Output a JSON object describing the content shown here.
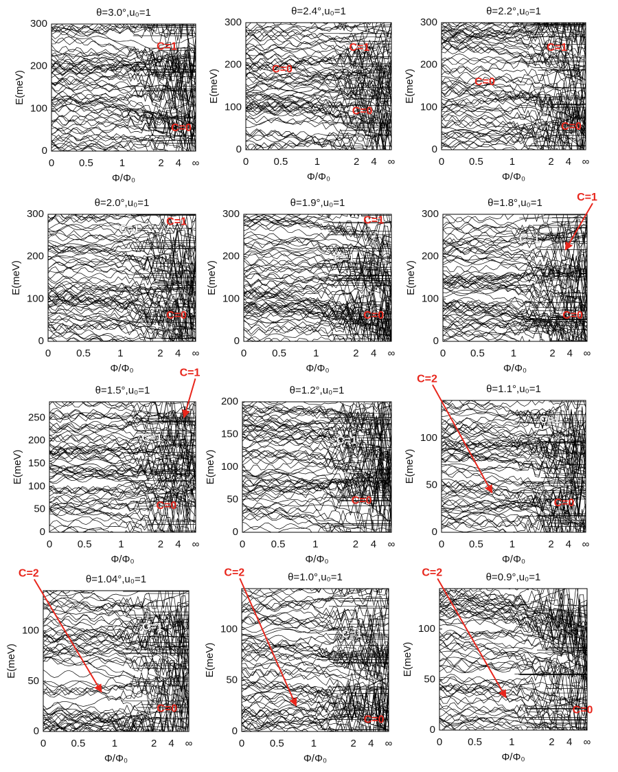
{
  "chart_data": [
    {
      "type": "spectrum",
      "title": "θ=3.0°,u₀=1",
      "ylabel": "E(meV)",
      "xlabel": "Φ/Φ₀",
      "xtick_labels": [
        "0",
        "0.5",
        "1",
        "2",
        "4",
        "∞"
      ],
      "ylim": [
        0,
        300
      ],
      "yticks": [
        0,
        100,
        200,
        300
      ],
      "annotations": [
        "C=1",
        "C=0"
      ]
    },
    {
      "type": "spectrum",
      "title": "θ=2.4°,u₀=1",
      "ylabel": "E(meV)",
      "xlabel": "Φ/Φ₀",
      "xtick_labels": [
        "0",
        "0.5",
        "1",
        "2",
        "4",
        "∞"
      ],
      "ylim": [
        0,
        300
      ],
      "yticks": [
        0,
        100,
        200,
        300
      ],
      "annotations": [
        "C=1",
        "C=0",
        "C=0"
      ]
    },
    {
      "type": "spectrum",
      "title": "θ=2.2°,u₀=1",
      "ylabel": "E(meV)",
      "xlabel": "Φ/Φ₀",
      "xtick_labels": [
        "0",
        "0.5",
        "1",
        "2",
        "4",
        "∞"
      ],
      "ylim": [
        0,
        300
      ],
      "yticks": [
        0,
        100,
        200,
        300
      ],
      "annotations": [
        "C=1",
        "C=0",
        "C=0"
      ]
    },
    {
      "type": "spectrum",
      "title": "θ=2.0°,u₀=1",
      "ylabel": "E(meV)",
      "xlabel": "Φ/Φ₀",
      "xtick_labels": [
        "0",
        "0.5",
        "1",
        "2",
        "4",
        "∞"
      ],
      "ylim": [
        0,
        300
      ],
      "yticks": [
        0,
        100,
        200,
        300
      ],
      "annotations": [
        "C=1",
        "C=1",
        "C=0"
      ]
    },
    {
      "type": "spectrum",
      "title": "θ=1.9°,u₀=1",
      "ylabel": "E(meV)",
      "xlabel": "Φ/Φ₀",
      "xtick_labels": [
        "0",
        "0.5",
        "1",
        "2",
        "4",
        "∞"
      ],
      "ylim": [
        0,
        300
      ],
      "yticks": [
        0,
        100,
        200,
        300
      ],
      "annotations": [
        "C=1",
        "C=1",
        "C=0"
      ]
    },
    {
      "type": "spectrum",
      "title": "θ=1.8°,u₀=1",
      "ylabel": "E(meV)",
      "xlabel": "Φ/Φ₀",
      "xtick_labels": [
        "0",
        "0.5",
        "1",
        "2",
        "4",
        "∞"
      ],
      "ylim": [
        0,
        300
      ],
      "yticks": [
        0,
        100,
        200,
        300
      ],
      "annotations": [
        "C=1",
        "C=1",
        "C=0"
      ]
    },
    {
      "type": "spectrum",
      "title": "θ=1.5°,u₀=1",
      "ylabel": "E(meV)",
      "xlabel": "Φ/Φ₀",
      "xtick_labels": [
        "0",
        "0.5",
        "1",
        "2",
        "4",
        "∞"
      ],
      "ylim": [
        0,
        285
      ],
      "yticks": [
        0,
        50,
        100,
        150,
        200,
        250
      ],
      "annotations": [
        "C=1",
        "C=1",
        "C=0"
      ]
    },
    {
      "type": "spectrum",
      "title": "θ=1.2°,u₀=1",
      "ylabel": "E(meV)",
      "xlabel": "Φ/Φ₀",
      "xtick_labels": [
        "0",
        "0.5",
        "1",
        "2",
        "4",
        "∞"
      ],
      "ylim": [
        0,
        200
      ],
      "yticks": [
        0,
        50,
        100,
        150,
        200
      ],
      "annotations": [
        "C=1",
        "C=0"
      ]
    },
    {
      "type": "spectrum",
      "title": "θ=1.1°,u₀=1",
      "ylabel": "E(meV)",
      "xlabel": "Φ/Φ₀",
      "xtick_labels": [
        "0",
        "0.5",
        "1",
        "2",
        "4",
        "∞"
      ],
      "ylim": [
        0,
        140
      ],
      "yticks": [
        0,
        50,
        100
      ],
      "annotations": [
        "C=2",
        "C=1",
        "C=0"
      ]
    },
    {
      "type": "spectrum",
      "title": "θ=1.04°,u₀=1",
      "ylabel": "E(meV)",
      "xlabel": "Φ/Φ₀",
      "xtick_labels": [
        "0",
        "0.5",
        "1",
        "2",
        "4",
        "∞"
      ],
      "ylim": [
        0,
        140
      ],
      "yticks": [
        0,
        50,
        100
      ],
      "annotations": [
        "C=2",
        "C=1",
        "C=0"
      ]
    },
    {
      "type": "spectrum",
      "title": "θ=1.0°,u₀=1",
      "ylabel": "E(meV)",
      "xlabel": "Φ/Φ₀",
      "xtick_labels": [
        "0",
        "0.5",
        "1",
        "2",
        "4",
        "∞"
      ],
      "ylim": [
        0,
        140
      ],
      "yticks": [
        0,
        50,
        100
      ],
      "annotations": [
        "C=2",
        "C=1",
        "C=0"
      ]
    },
    {
      "type": "spectrum",
      "title": "θ=0.9°,u₀=1",
      "ylabel": "E(meV)",
      "xlabel": "Φ/Φ₀",
      "xtick_labels": [
        "0",
        "0.5",
        "1",
        "2",
        "4",
        "∞"
      ],
      "ylim": [
        0,
        140
      ],
      "yticks": [
        0,
        50,
        100
      ],
      "annotations": [
        "C=2",
        "C=0"
      ]
    }
  ]
}
